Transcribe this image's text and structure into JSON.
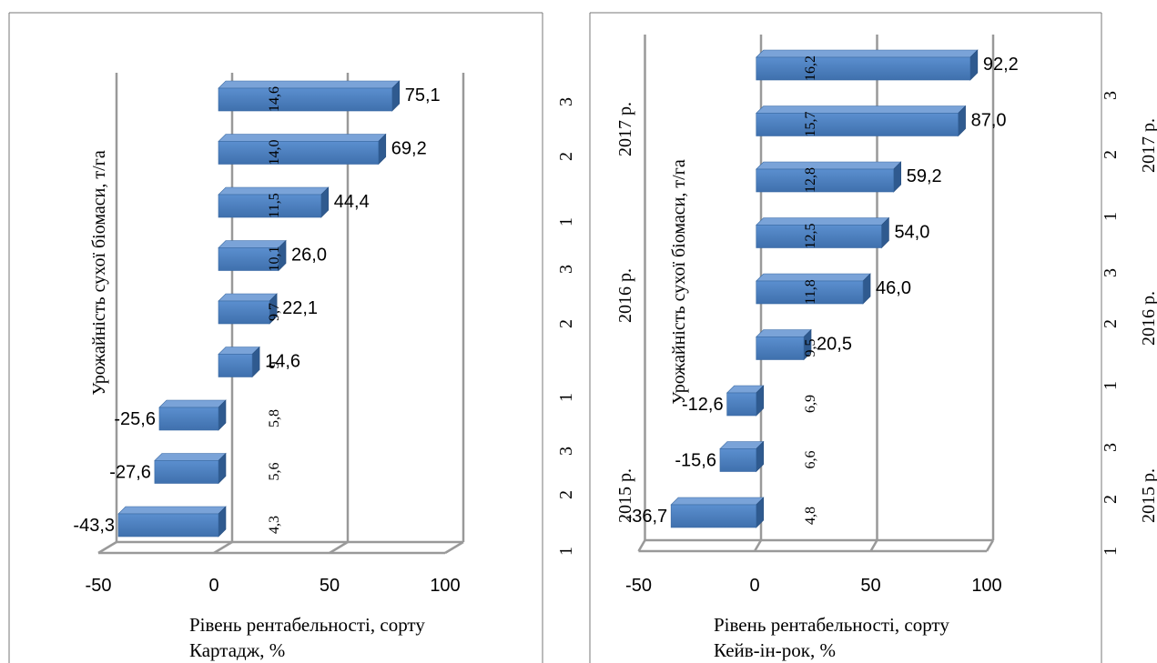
{
  "chart_data": [
    {
      "type": "bar",
      "orientation": "horizontal",
      "values": [
        75.1,
        69.2,
        44.4,
        26.0,
        22.1,
        14.6,
        -25.6,
        -27.6,
        -43.3
      ],
      "value_labels": [
        "75,1",
        "69,2",
        "44,4",
        "26,0",
        "22,1",
        "14,6",
        "-25,6",
        "-27,6",
        "-43,3"
      ],
      "yield_labels": [
        "14,6",
        "14,0",
        "11,5",
        "10,1",
        "9,7",
        "9",
        "5,8",
        "5,6",
        "4,3"
      ],
      "x_ticks": [
        "-50",
        "0",
        "50",
        "100"
      ],
      "xlim": [
        -50,
        100
      ],
      "xlabel_line1": "Рівень рентабельності, сорту",
      "xlabel_line2": "Картадж, %",
      "ylabel": "Урожайність сухої біомаси, т/га",
      "grid": true,
      "color": "#4f81bd"
    },
    {
      "type": "bar",
      "orientation": "horizontal",
      "values": [
        92.2,
        87.0,
        59.2,
        54.0,
        46.0,
        20.5,
        -12.6,
        -15.6,
        -36.7
      ],
      "value_labels": [
        "92,2",
        "87,0",
        "59,2",
        "54,0",
        "46,0",
        "20,5",
        "-12,6",
        "-15,6",
        "-36,7"
      ],
      "yield_labels": [
        "16,2",
        "15,7",
        "12,8",
        "12,5",
        "11,8",
        "9,5",
        "6,9",
        "6,6",
        "4,8"
      ],
      "x_ticks": [
        "-50",
        "0",
        "50",
        "100"
      ],
      "xlim": [
        -50,
        100
      ],
      "xlabel_line1": "Рівень рентабельності, сорту",
      "xlabel_line2": "Кейв-ін-рок, %",
      "ylabel": "Урожайність сухої біомаси, т/га",
      "grid": true,
      "color": "#4f81bd",
      "left_category_labels": [
        "1",
        "2",
        "3",
        "1",
        "2",
        "3",
        "1",
        "2",
        "3"
      ],
      "left_year_labels": [
        "2015 р.",
        "2016 р.",
        "2017 р."
      ],
      "right_category_labels": [
        "1",
        "2",
        "3",
        "1",
        "2",
        "3",
        "1",
        "2",
        "3"
      ],
      "right_year_labels": [
        "2015 р.",
        "2016 р.",
        "2017 р."
      ]
    }
  ]
}
